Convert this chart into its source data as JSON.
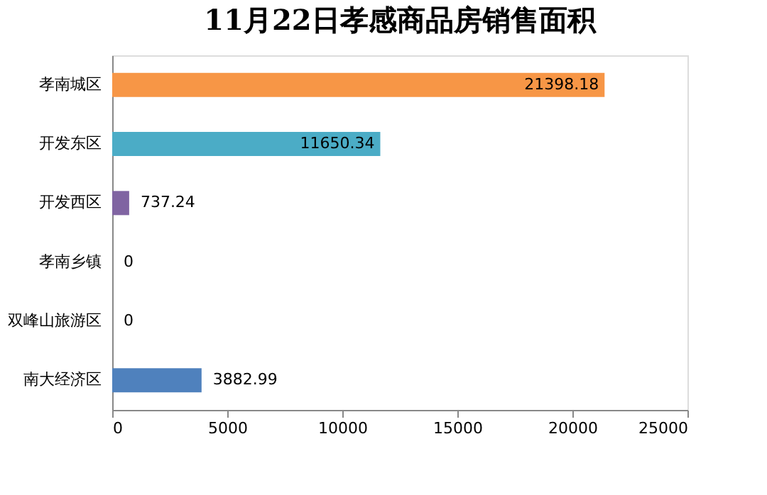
{
  "chart_data": {
    "type": "bar",
    "orientation": "horizontal",
    "title": "11月22日孝感商品房销售面积",
    "categories": [
      "孝南城区",
      "开发东区",
      "开发西区",
      "孝南乡镇",
      "双峰山旅游区",
      "南大经济区"
    ],
    "values": [
      21398.18,
      11650.34,
      737.24,
      0,
      0,
      3882.99
    ],
    "colors": [
      "#f79646",
      "#4bacc6",
      "#8064a2",
      "#4f81bd",
      "#4f81bd",
      "#4f81bd"
    ],
    "xlim": [
      0,
      25000
    ],
    "xticks": [
      0,
      5000,
      10000,
      15000,
      20000,
      25000
    ],
    "data_labels": true,
    "grid": false
  }
}
